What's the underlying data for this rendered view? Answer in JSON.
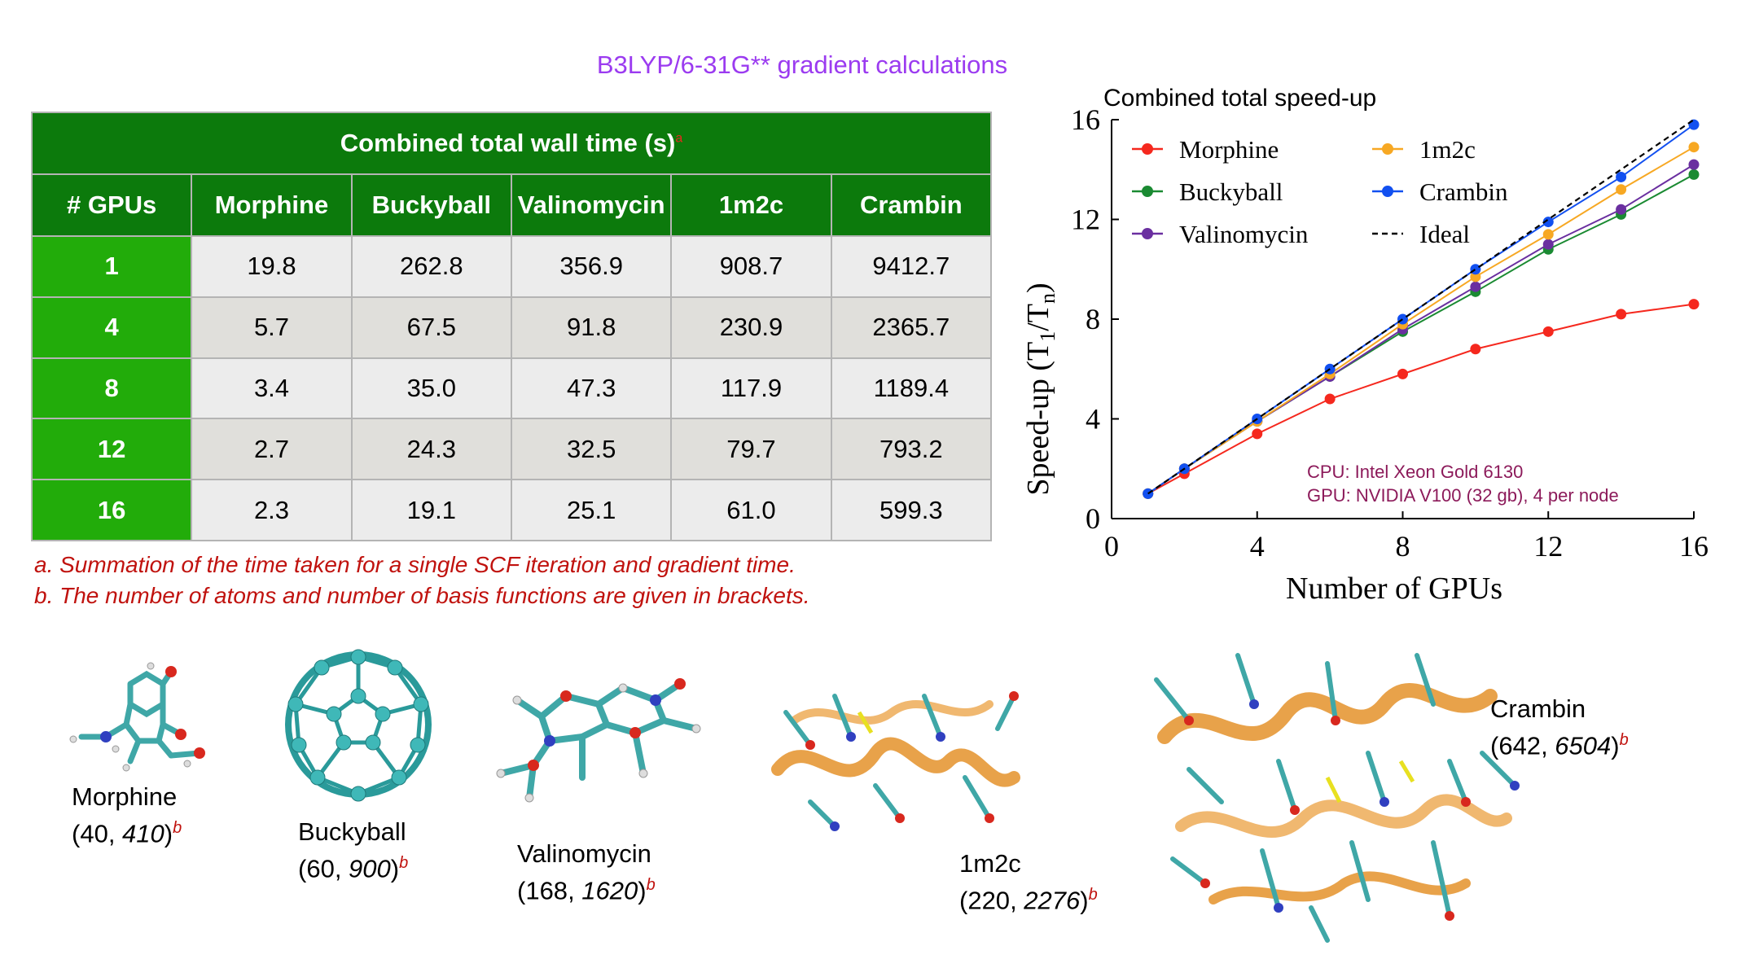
{
  "title": "B3LYP/6-31G** gradient calculations",
  "table": {
    "caption": "Combined total wall time (s)",
    "caption_mark": "a",
    "headers": [
      "# GPUs",
      "Morphine",
      "Buckyball",
      "Valinomycin",
      "1m2c",
      "Crambin"
    ],
    "rows": [
      [
        "1",
        "19.8",
        "262.8",
        "356.9",
        "908.7",
        "9412.7"
      ],
      [
        "4",
        "5.7",
        "67.5",
        "91.8",
        "230.9",
        "2365.7"
      ],
      [
        "8",
        "3.4",
        "35.0",
        "47.3",
        "117.9",
        "1189.4"
      ],
      [
        "12",
        "2.7",
        "24.3",
        "32.5",
        "79.7",
        "793.2"
      ],
      [
        "16",
        "2.3",
        "19.1",
        "25.1",
        "61.0",
        "599.3"
      ]
    ]
  },
  "footnotes": [
    "a. Summation of the time taken for a single SCF iteration and gradient time.",
    "b. The number of atoms and number of basis functions are given in brackets."
  ],
  "molecules": [
    {
      "name": "Morphine",
      "atoms": "40",
      "basis": "410",
      "mark": "b"
    },
    {
      "name": "Buckyball",
      "atoms": "60",
      "basis": "900",
      "mark": "b"
    },
    {
      "name": "Valinomycin",
      "atoms": "168",
      "basis": "1620",
      "mark": "b"
    },
    {
      "name": "1m2c",
      "atoms": "220",
      "basis": "2276",
      "mark": "b"
    },
    {
      "name": "Crambin",
      "atoms": "642",
      "basis": "6504",
      "mark": "b"
    }
  ],
  "chart_data": {
    "type": "line",
    "title": "Combined total speed-up",
    "xlabel": "Number of GPUs",
    "ylabel_main": "Speed-up (T",
    "ylabel_sub1": "1",
    "ylabel_mid": "/T",
    "ylabel_sub2": "n",
    "ylabel_end": ")",
    "xlim": [
      0,
      16
    ],
    "ylim": [
      0,
      16
    ],
    "xticks": [
      0,
      4,
      8,
      12,
      16
    ],
    "yticks": [
      0,
      4,
      8,
      12,
      16
    ],
    "grid": false,
    "legend_position": "top-left",
    "x": [
      1,
      2,
      4,
      6,
      8,
      10,
      12,
      14,
      16
    ],
    "series": [
      {
        "name": "Morphine",
        "color": "#f5281e",
        "values": [
          1.0,
          1.8,
          3.4,
          4.8,
          5.8,
          6.8,
          7.5,
          8.2,
          8.6
        ]
      },
      {
        "name": "Buckyball",
        "color": "#1a8a32",
        "values": [
          1.0,
          2.0,
          3.9,
          5.7,
          7.5,
          9.1,
          10.8,
          12.2,
          13.8
        ]
      },
      {
        "name": "Valinomycin",
        "color": "#6a2fa0",
        "values": [
          1.0,
          2.0,
          3.9,
          5.7,
          7.6,
          9.3,
          11.0,
          12.4,
          14.2
        ]
      },
      {
        "name": "1m2c",
        "color": "#f7a823",
        "values": [
          1.0,
          2.0,
          3.9,
          5.8,
          7.8,
          9.7,
          11.4,
          13.2,
          14.9
        ]
      },
      {
        "name": "Crambin",
        "color": "#1250f0",
        "values": [
          1.0,
          2.0,
          4.0,
          6.0,
          8.0,
          10.0,
          11.9,
          13.7,
          15.8
        ]
      },
      {
        "name": "Ideal",
        "color": "#000000",
        "dashed": true,
        "values": [
          1,
          2,
          4,
          6,
          8,
          10,
          12,
          14,
          16
        ]
      }
    ],
    "annotations": [
      "CPU: Intel Xeon Gold 6130",
      "GPU: NVIDIA V100 (32 gb), 4 per node"
    ],
    "annotation_color": "#8c1a5a"
  }
}
